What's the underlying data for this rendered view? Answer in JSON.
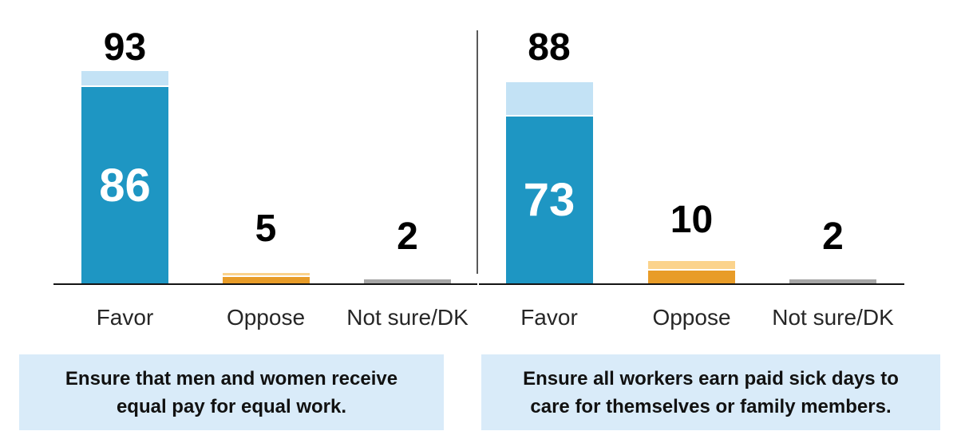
{
  "figure": {
    "description": "Two side-by-side stacked bar charts of poll results (percent favoring policies), with policy captions below",
    "colors": {
      "favor_dark": "#1e96c3",
      "favor_light": "#c3e2f5",
      "oppose_dark": "#e89c28",
      "oppose_light": "#fbd38c",
      "notsure_solid": "#a6a6a6",
      "caption_bg": "#d9ebf9",
      "axis": "#141414",
      "divider": "#595959",
      "label_text": "#000000",
      "inner_label_text": "#ffffff",
      "category_text": "#262626"
    },
    "panels": [
      {
        "caption": {
          "lines": [
            "Ensure that men and women receive",
            "equal pay for equal work."
          ]
        }
      },
      {
        "caption": {
          "lines": [
            "Ensure all workers earn paid sick days to",
            "care for themselves or family members."
          ]
        }
      }
    ]
  },
  "chart_data": [
    {
      "type": "bar",
      "stacked": true,
      "caption": "Ensure that men and women receive equal pay for equal work.",
      "categories": [
        "Favor",
        "Oppose",
        "Not sure/DK"
      ],
      "bar_styles": [
        "favor",
        "oppose",
        "notsure"
      ],
      "totals": [
        93,
        5,
        2
      ],
      "dark_segment_values": [
        86,
        3,
        2
      ],
      "labels_above": [
        "93",
        "5",
        "2"
      ],
      "labels_inside": [
        "86",
        "",
        ""
      ],
      "ylim": [
        0,
        100
      ],
      "grid": false,
      "legend": false,
      "note": "dark segment of Oppose bar is unlabeled; value estimated from pixels"
    },
    {
      "type": "bar",
      "stacked": true,
      "caption": "Ensure all workers earn paid sick days to care for themselves or family members.",
      "categories": [
        "Favor",
        "Oppose",
        "Not sure/DK"
      ],
      "bar_styles": [
        "favor",
        "oppose",
        "notsure"
      ],
      "totals": [
        88,
        10,
        2
      ],
      "dark_segment_values": [
        73,
        6,
        2
      ],
      "labels_above": [
        "88",
        "10",
        "2"
      ],
      "labels_inside": [
        "73",
        "",
        ""
      ],
      "ylim": [
        0,
        100
      ],
      "grid": false,
      "legend": false,
      "note": "dark segment of Oppose bar is unlabeled; value estimated from pixels"
    }
  ]
}
